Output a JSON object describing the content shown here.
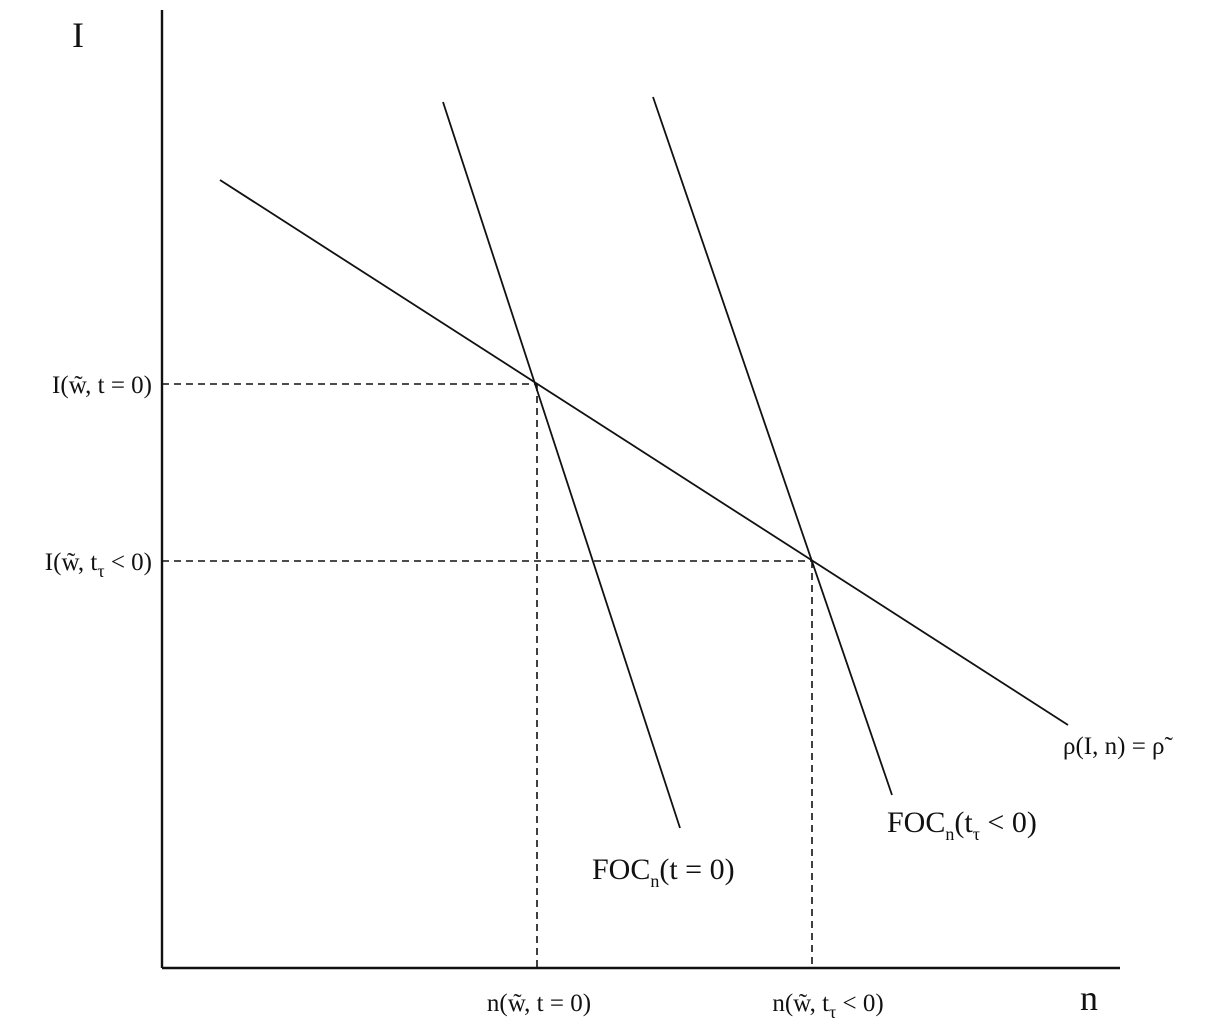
{
  "diagram": {
    "axes": {
      "y_label": "I",
      "x_label": "n"
    },
    "y_ticks": {
      "upper": {
        "main": "I(w̃, t = 0)"
      },
      "lower": {
        "pre": "I(w̃, t",
        "sub": "τ",
        "post": " < 0)"
      }
    },
    "x_ticks": {
      "left": {
        "main": "n(w̃, t = 0)"
      },
      "right": {
        "pre": "n(w̃, t",
        "sub": "τ",
        "post": " < 0)"
      }
    },
    "curves": {
      "rho": {
        "label": "ρ(I, n) = ρ̃"
      },
      "foc_t0": {
        "pre": "FOC",
        "sub": "n",
        "post": "(t = 0)"
      },
      "foc_tau": {
        "pre": "FOC",
        "sub": "n",
        "post1": "(t",
        "sub2": "τ",
        "post2": " < 0)"
      }
    },
    "color": "#111111"
  }
}
